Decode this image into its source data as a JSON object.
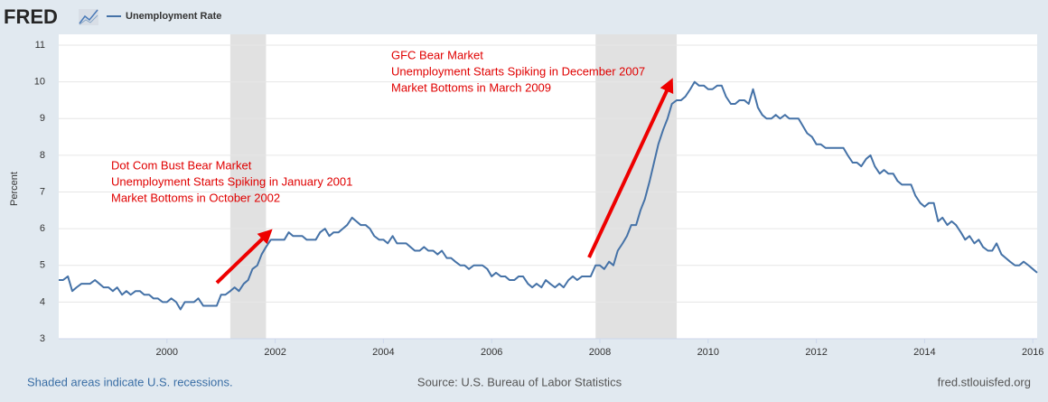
{
  "logo": "FRED",
  "chart_data": {
    "type": "line",
    "ylabel": "Percent",
    "x": [
      1998.0,
      1998.08,
      1998.17,
      1998.25,
      1998.33,
      1998.42,
      1998.5,
      1998.58,
      1998.67,
      1998.75,
      1998.83,
      1998.92,
      1999.0,
      1999.08,
      1999.17,
      1999.25,
      1999.33,
      1999.42,
      1999.5,
      1999.58,
      1999.67,
      1999.75,
      1999.83,
      1999.92,
      2000.0,
      2000.08,
      2000.17,
      2000.25,
      2000.33,
      2000.42,
      2000.5,
      2000.58,
      2000.67,
      2000.75,
      2000.83,
      2000.92,
      2001.0,
      2001.08,
      2001.17,
      2001.25,
      2001.33,
      2001.42,
      2001.5,
      2001.58,
      2001.67,
      2001.75,
      2001.83,
      2001.92,
      2002.0,
      2002.08,
      2002.17,
      2002.25,
      2002.33,
      2002.42,
      2002.5,
      2002.58,
      2002.67,
      2002.75,
      2002.83,
      2002.92,
      2003.0,
      2003.08,
      2003.17,
      2003.25,
      2003.33,
      2003.42,
      2003.5,
      2003.58,
      2003.67,
      2003.75,
      2003.83,
      2003.92,
      2004.0,
      2004.08,
      2004.17,
      2004.25,
      2004.33,
      2004.42,
      2004.5,
      2004.58,
      2004.67,
      2004.75,
      2004.83,
      2004.92,
      2005.0,
      2005.08,
      2005.17,
      2005.25,
      2005.33,
      2005.42,
      2005.5,
      2005.58,
      2005.67,
      2005.75,
      2005.83,
      2005.92,
      2006.0,
      2006.08,
      2006.17,
      2006.25,
      2006.33,
      2006.42,
      2006.5,
      2006.58,
      2006.67,
      2006.75,
      2006.83,
      2006.92,
      2007.0,
      2007.08,
      2007.17,
      2007.25,
      2007.33,
      2007.42,
      2007.5,
      2007.58,
      2007.67,
      2007.75,
      2007.83,
      2007.92,
      2008.0,
      2008.08,
      2008.17,
      2008.25,
      2008.33,
      2008.42,
      2008.5,
      2008.58,
      2008.67,
      2008.75,
      2008.83,
      2008.92,
      2009.0,
      2009.08,
      2009.17,
      2009.25,
      2009.33,
      2009.42,
      2009.5,
      2009.58,
      2009.67,
      2009.75,
      2009.83,
      2009.92,
      2010.0,
      2010.08,
      2010.17,
      2010.25,
      2010.33,
      2010.42,
      2010.5,
      2010.58,
      2010.67,
      2010.75,
      2010.83,
      2010.92,
      2011.0,
      2011.08,
      2011.17,
      2011.25,
      2011.33,
      2011.42,
      2011.5,
      2011.58,
      2011.67,
      2011.75,
      2011.83,
      2011.92,
      2012.0,
      2012.08,
      2012.17,
      2012.25,
      2012.33,
      2012.42,
      2012.5,
      2012.58,
      2012.67,
      2012.75,
      2012.83,
      2012.92,
      2013.0,
      2013.08,
      2013.17,
      2013.25,
      2013.33,
      2013.42,
      2013.5,
      2013.58,
      2013.67,
      2013.75,
      2013.83,
      2013.92,
      2014.0,
      2014.08,
      2014.17,
      2014.25,
      2014.33,
      2014.42,
      2014.5,
      2014.58,
      2014.67,
      2014.75,
      2014.83,
      2014.92,
      2015.0,
      2015.08,
      2015.17,
      2015.25,
      2015.33,
      2015.42,
      2015.5,
      2015.58,
      2015.67,
      2015.75,
      2015.83,
      2015.92,
      2016.0,
      2016.08
    ],
    "series": [
      {
        "name": "Unemployment Rate",
        "color": "#4572a7",
        "values": [
          4.6,
          4.6,
          4.7,
          4.3,
          4.4,
          4.5,
          4.5,
          4.5,
          4.6,
          4.5,
          4.4,
          4.4,
          4.3,
          4.4,
          4.2,
          4.3,
          4.2,
          4.3,
          4.3,
          4.2,
          4.2,
          4.1,
          4.1,
          4.0,
          4.0,
          4.1,
          4.0,
          3.8,
          4.0,
          4.0,
          4.0,
          4.1,
          3.9,
          3.9,
          3.9,
          3.9,
          4.2,
          4.2,
          4.3,
          4.4,
          4.3,
          4.5,
          4.6,
          4.9,
          5.0,
          5.3,
          5.5,
          5.7,
          5.7,
          5.7,
          5.7,
          5.9,
          5.8,
          5.8,
          5.8,
          5.7,
          5.7,
          5.7,
          5.9,
          6.0,
          5.8,
          5.9,
          5.9,
          6.0,
          6.1,
          6.3,
          6.2,
          6.1,
          6.1,
          6.0,
          5.8,
          5.7,
          5.7,
          5.6,
          5.8,
          5.6,
          5.6,
          5.6,
          5.5,
          5.4,
          5.4,
          5.5,
          5.4,
          5.4,
          5.3,
          5.4,
          5.2,
          5.2,
          5.1,
          5.0,
          5.0,
          4.9,
          5.0,
          5.0,
          5.0,
          4.9,
          4.7,
          4.8,
          4.7,
          4.7,
          4.6,
          4.6,
          4.7,
          4.7,
          4.5,
          4.4,
          4.5,
          4.4,
          4.6,
          4.5,
          4.4,
          4.5,
          4.4,
          4.6,
          4.7,
          4.6,
          4.7,
          4.7,
          4.7,
          5.0,
          5.0,
          4.9,
          5.1,
          5.0,
          5.4,
          5.6,
          5.8,
          6.1,
          6.1,
          6.5,
          6.8,
          7.3,
          7.8,
          8.3,
          8.7,
          9.0,
          9.4,
          9.5,
          9.5,
          9.6,
          9.8,
          10.0,
          9.9,
          9.9,
          9.8,
          9.8,
          9.9,
          9.9,
          9.6,
          9.4,
          9.4,
          9.5,
          9.5,
          9.4,
          9.8,
          9.3,
          9.1,
          9.0,
          9.0,
          9.1,
          9.0,
          9.1,
          9.0,
          9.0,
          9.0,
          8.8,
          8.6,
          8.5,
          8.3,
          8.3,
          8.2,
          8.2,
          8.2,
          8.2,
          8.2,
          8.0,
          7.8,
          7.8,
          7.7,
          7.9,
          8.0,
          7.7,
          7.5,
          7.6,
          7.5,
          7.5,
          7.3,
          7.2,
          7.2,
          7.2,
          6.9,
          6.7,
          6.6,
          6.7,
          6.7,
          6.2,
          6.3,
          6.1,
          6.2,
          6.1,
          5.9,
          5.7,
          5.8,
          5.6,
          5.7,
          5.5,
          5.4,
          5.4,
          5.6,
          5.3,
          5.2,
          5.1,
          5.0,
          5.0,
          5.1,
          5.0,
          4.9,
          4.8
        ]
      }
    ],
    "xlim": [
      1998,
      2016.08
    ],
    "ylim": [
      3,
      11
    ],
    "xticks": [
      2000,
      2002,
      2004,
      2006,
      2008,
      2010,
      2012,
      2014,
      2016
    ],
    "yticks": [
      3,
      4,
      5,
      6,
      7,
      8,
      9,
      10,
      11
    ],
    "grid": true,
    "recessions": [
      [
        2001.17,
        2001.83
      ],
      [
        2007.92,
        2009.42
      ]
    ],
    "annotations": [
      [
        "Dot Com Bust Bear Market",
        "Unemployment Starts Spiking in January 2001",
        "Market Bottoms in October 2002"
      ],
      [
        "GFC Bear Market",
        "Unemployment Starts Spiking in December 2007",
        "Market Bottoms in March 2009"
      ]
    ],
    "note": "Shaded areas indicate U.S. recessions.",
    "source": "Source: U.S. Bureau of Labor Statistics",
    "site": "fred.stlouisfed.org"
  }
}
